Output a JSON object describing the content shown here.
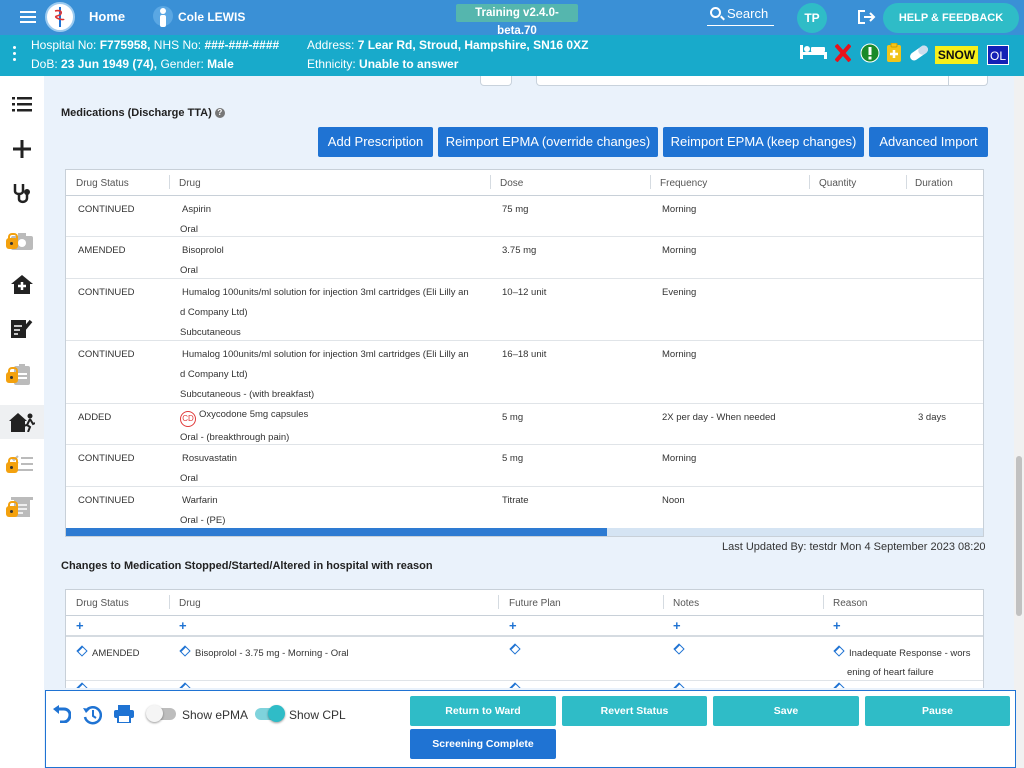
{
  "header": {
    "home_label": "Home",
    "patient_name": "Cole LEWIS",
    "version": "Training v2.4.0-beta.70",
    "search_label": "Search",
    "user_initials": "TP",
    "help_label": "HELP & FEEDBACK"
  },
  "patient": {
    "hospital_no_label": "Hospital No:",
    "hospital_no": "F775958,",
    "nhs_no_label": "NHS No:",
    "nhs_no": "###-###-####",
    "dob_label": "DoB:",
    "dob": "23 Jun 1949 (74),",
    "gender_label": "Gender:",
    "gender": "Male",
    "address_label": "Address:",
    "address": "7 Lear Rd, Stroud, Hampshire, SN16 0XZ",
    "ethnicity_label": "Ethnicity:",
    "ethnicity": "Unable to answer",
    "snow_label": "SNOW",
    "ol_label": "OL"
  },
  "medications": {
    "title": "Medications (Discharge TTA)",
    "buttons": {
      "add": "Add Prescription",
      "reimport_override": "Reimport EPMA (override changes)",
      "reimport_keep": "Reimport EPMA (keep changes)",
      "advanced": "Advanced Import"
    },
    "columns": [
      "Drug Status",
      "Drug",
      "Dose",
      "Frequency",
      "Quantity",
      "Duration"
    ],
    "rows": [
      {
        "status": "CONTINUED",
        "drug": "Aspirin",
        "drug2": "",
        "route": "Oral",
        "dose": "75 mg",
        "frequency": "Morning",
        "quantity": "",
        "duration": "",
        "cd": ""
      },
      {
        "status": "AMENDED",
        "drug": "Bisoprolol",
        "drug2": "",
        "route": "Oral",
        "dose": "3.75 mg",
        "frequency": "Morning",
        "quantity": "",
        "duration": "",
        "cd": ""
      },
      {
        "status": "CONTINUED",
        "drug": "Humalog 100units/ml solution for injection 3ml cartridges (Eli Lilly an",
        "drug2": "d Company Ltd)",
        "route": "Subcutaneous",
        "dose": "10–12 unit",
        "frequency": "Evening",
        "quantity": "",
        "duration": "",
        "cd": ""
      },
      {
        "status": "CONTINUED",
        "drug": "Humalog 100units/ml solution for injection 3ml cartridges (Eli Lilly an",
        "drug2": "d Company Ltd)",
        "route": "Subcutaneous - (with breakfast)",
        "dose": "16–18 unit",
        "frequency": "Morning",
        "quantity": "",
        "duration": "",
        "cd": ""
      },
      {
        "status": "ADDED",
        "drug": "Oxycodone 5mg capsules",
        "drug2": "",
        "route": "Oral - (breakthrough pain)",
        "dose": "5 mg",
        "frequency": "2X per day - When needed",
        "quantity": "",
        "duration": "3 days",
        "cd": "CD"
      },
      {
        "status": "CONTINUED",
        "drug": "Rosuvastatin",
        "drug2": "",
        "route": "Oral",
        "dose": "5 mg",
        "frequency": "Morning",
        "quantity": "",
        "duration": "",
        "cd": ""
      },
      {
        "status": "CONTINUED",
        "drug": "Warfarin",
        "drug2": "",
        "route": "Oral - (PE)",
        "dose": "Titrate",
        "frequency": "Noon",
        "quantity": "",
        "duration": "",
        "cd": ""
      }
    ],
    "scroll_fraction": 0.59,
    "last_updated": "Last Updated By: testdr Mon 4 September 2023 08:20"
  },
  "changes": {
    "title": "Changes to Medication Stopped/Started/Altered in hospital with reason",
    "columns": [
      "Drug Status",
      "Drug",
      "Future Plan",
      "Notes",
      "Reason"
    ],
    "add_symbol": "+",
    "rows": [
      {
        "status": "AMENDED",
        "drug": "Bisoprolol - 3.75 mg - Morning - Oral",
        "future_plan": "",
        "notes": "",
        "reason": "Inadequate Response - wors",
        "reason2": "ening of heart failure"
      }
    ]
  },
  "footer": {
    "show_epma_label": "Show ePMA",
    "show_epma_on": false,
    "show_cpl_label": "Show CPL",
    "show_cpl_on": true,
    "buttons": {
      "return_ward": "Return to Ward",
      "revert_status": "Revert Status",
      "save": "Save",
      "pause": "Pause",
      "screening_complete": "Screening Complete"
    }
  },
  "colors": {
    "header_blue": "#3a90d6",
    "patient_bar": "#18aacb",
    "accent_teal": "#2fbcc7",
    "primary_button": "#1f73d3",
    "lock_orange": "#f3a10e"
  }
}
